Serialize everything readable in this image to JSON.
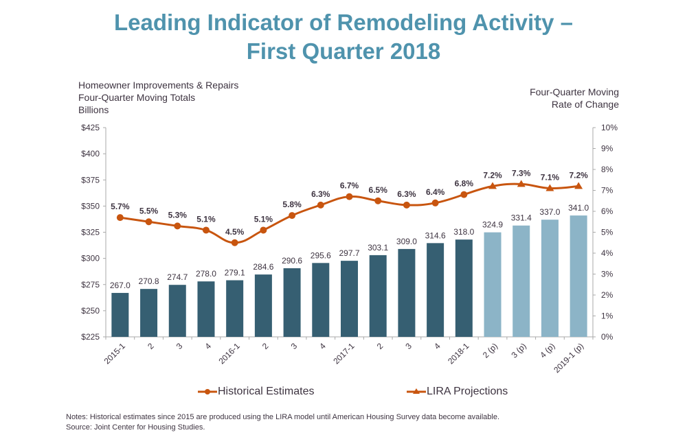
{
  "chart_data": {
    "type": "bar",
    "title": "Leading Indicator of Remodeling Activity – First Quarter 2018",
    "title_lines": [
      "Leading Indicator of Remodeling Activity –",
      "First Quarter 2018"
    ],
    "left_axis_label_lines": [
      "Homeowner Improvements  & Repairs",
      "Four-Quarter  Moving Totals",
      "Billions"
    ],
    "right_axis_label_lines": [
      "Four-Quarter  Moving",
      "Rate of Change"
    ],
    "categories": [
      "2015-1",
      "2",
      "3",
      "4",
      "2016-1",
      "2",
      "3",
      "4",
      "2017-1",
      "2",
      "3",
      "4",
      "2018-1",
      "2 (p)",
      "3 (p)",
      "4 (p)",
      "2019-1 (p)"
    ],
    "bar_values": [
      267.0,
      270.8,
      274.7,
      278.0,
      279.1,
      284.6,
      290.6,
      295.6,
      297.7,
      303.1,
      309.0,
      314.6,
      318.0,
      324.9,
      331.4,
      337.0,
      341.0
    ],
    "bar_labels": [
      "267.0",
      "270.8",
      "274.7",
      "278.0",
      "279.1",
      "284.6",
      "290.6",
      "295.6",
      "297.7",
      "303.1",
      "309.0",
      "314.6",
      "318.0",
      "324.9",
      "331.4",
      "337.0",
      "341.0"
    ],
    "projected_from_index": 13,
    "rate_values": [
      5.7,
      5.5,
      5.3,
      5.1,
      4.5,
      5.1,
      5.8,
      6.3,
      6.7,
      6.5,
      6.3,
      6.4,
      6.8,
      7.2,
      7.3,
      7.1,
      7.2
    ],
    "rate_labels": [
      "5.7%",
      "5.5%",
      "5.3%",
      "5.1%",
      "4.5%",
      "5.1%",
      "5.8%",
      "6.3%",
      "6.7%",
      "6.5%",
      "6.3%",
      "6.4%",
      "6.8%",
      "7.2%",
      "7.3%",
      "7.1%",
      "7.2%"
    ],
    "series": [
      {
        "name": "Homeowner Improvements & Repairs (Billions)",
        "axis": "left",
        "type": "bar"
      },
      {
        "name": "Historical Estimates",
        "axis": "right",
        "type": "line",
        "marker": "circle",
        "range": [
          0,
          12
        ]
      },
      {
        "name": "LIRA Projections",
        "axis": "right",
        "type": "line",
        "marker": "triangle",
        "range": [
          12,
          16
        ]
      }
    ],
    "left_axis": {
      "ylim": [
        225,
        425
      ],
      "step": 25,
      "tick_labels": [
        "$225",
        "$250",
        "$275",
        "$300",
        "$325",
        "$350",
        "$375",
        "$400",
        "$425"
      ]
    },
    "right_axis": {
      "ylim": [
        0,
        10
      ],
      "step": 1,
      "tick_labels": [
        "0%",
        "1%",
        "2%",
        "3%",
        "4%",
        "5%",
        "6%",
        "7%",
        "8%",
        "9%",
        "10%"
      ]
    },
    "grid": false,
    "legend_position": "bottom",
    "legend": [
      "Historical Estimates",
      "LIRA Projections"
    ],
    "colors": {
      "historical_bar": "#365f72",
      "projected_bar": "#8cb4c7",
      "line": "#c8550f",
      "title": "#4f93ad",
      "text": "#3d3340",
      "axis": "#a8a8a8"
    }
  },
  "notes": {
    "line1": "Notes: Historical estimates since 2015 are produced using the LIRA model until American Housing Survey data become available.",
    "line2": "Source: Joint Center for Housing Studies."
  }
}
